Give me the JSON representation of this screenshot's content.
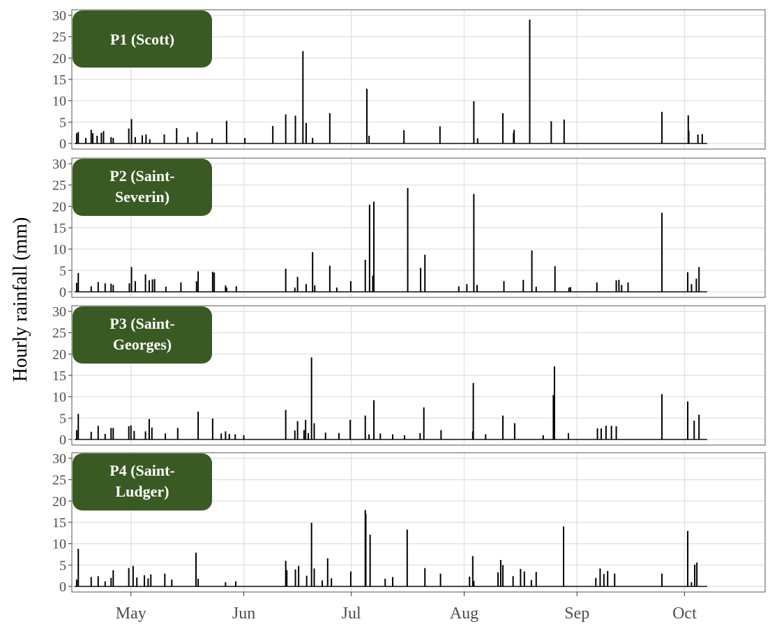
{
  "chart_data": {
    "type": "bar",
    "ylabel": "Hourly rainfall (mm)",
    "xlabel": "",
    "ylim": [
      0,
      30
    ],
    "yticks": [
      0,
      5,
      10,
      15,
      20,
      25,
      30
    ],
    "x_range_days": [
      75,
      204
    ],
    "xticks": [
      {
        "label": "May",
        "day": 86
      },
      {
        "label": "Jun",
        "day": 107
      },
      {
        "label": "Jul",
        "day": 127
      },
      {
        "label": "Aug",
        "day": 148
      },
      {
        "label": "Sep",
        "day": 169
      },
      {
        "label": "Oct",
        "day": 189
      }
    ],
    "grid": true,
    "strip_color": "#3a5a23",
    "series": [
      {
        "name": "P1 (Scott)",
        "name_lines": [
          "P1 (Scott)"
        ],
        "x": [
          75.9,
          76.2,
          77.6,
          78.6,
          78.9,
          79.7,
          80.5,
          80.9,
          82.3,
          82.7,
          85.6,
          86.1,
          86.8,
          88.1,
          88.8,
          89.5,
          92.2,
          94.5,
          96.6,
          98.3,
          101.1,
          103.8,
          107.2,
          112.4,
          114.8,
          116.6,
          118.0,
          118.6,
          119.8,
          123.0,
          129.9,
          130.3,
          136.8,
          143.5,
          149.8,
          150.5,
          155.2,
          157.2,
          157.3,
          160.2,
          164.2,
          166.6,
          184.8,
          189.7,
          189.8,
          191.5,
          192.3
        ],
        "values": [
          2.4,
          2.7,
          1.3,
          3.2,
          2.4,
          1.8,
          2.5,
          2.9,
          1.5,
          1.3,
          3.5,
          5.7,
          1.5,
          1.9,
          2.1,
          1.0,
          2.1,
          3.6,
          1.5,
          2.7,
          1.2,
          5.3,
          1.3,
          4.1,
          6.8,
          6.5,
          21.6,
          4.8,
          1.3,
          7.1,
          12.8,
          1.8,
          3.1,
          4.0,
          9.9,
          1.2,
          7.1,
          2.5,
          3.2,
          29.0,
          5.2,
          5.6,
          7.4,
          6.6,
          3.0,
          2.1,
          2.2
        ]
      },
      {
        "name": "P2 (Saint-Severin)",
        "name_lines": [
          "P2 (Saint-",
          "Severin)"
        ],
        "x": [
          75.9,
          76.2,
          78.6,
          79.9,
          81.2,
          82.3,
          82.7,
          85.7,
          86.1,
          86.8,
          88.7,
          89.4,
          90.0,
          90.4,
          92.5,
          95.3,
          98.2,
          98.5,
          101.2,
          101.5,
          103.6,
          103.8,
          105.6,
          114.8,
          116.5,
          117.0,
          118.6,
          119.8,
          120.2,
          123.0,
          124.3,
          126.9,
          129.6,
          130.4,
          131.0,
          131.2,
          137.5,
          139.9,
          140.7,
          147.0,
          148.5,
          149.8,
          150.4,
          155.4,
          159.0,
          160.6,
          161.4,
          164.9,
          167.5,
          167.8,
          172.7,
          176.3,
          176.8,
          177.3,
          178.5,
          184.8,
          189.6,
          190.3,
          191.2,
          191.7
        ],
        "values": [
          2.1,
          4.4,
          1.3,
          2.3,
          2.0,
          1.9,
          1.6,
          2.0,
          5.8,
          2.5,
          4.1,
          2.7,
          2.9,
          3.0,
          1.2,
          2.2,
          2.5,
          4.8,
          4.7,
          4.5,
          1.5,
          1.0,
          1.3,
          5.4,
          1.0,
          3.5,
          1.8,
          9.3,
          1.5,
          6.1,
          1.0,
          2.5,
          7.5,
          20.4,
          3.8,
          21.1,
          24.3,
          5.6,
          8.7,
          1.3,
          1.8,
          22.9,
          1.6,
          2.5,
          2.8,
          9.7,
          1.2,
          6.0,
          1.0,
          1.1,
          2.2,
          2.7,
          2.8,
          1.6,
          2.2,
          18.5,
          4.6,
          1.8,
          3.1,
          5.8
        ]
      },
      {
        "name": "P3 (Saint-Georges)",
        "name_lines": [
          "P3 (Saint-",
          "Georges)"
        ],
        "x": [
          75.9,
          76.2,
          78.6,
          79.9,
          81.2,
          82.3,
          82.7,
          85.6,
          86.0,
          86.6,
          88.7,
          89.4,
          89.9,
          92.4,
          94.7,
          98.5,
          101.2,
          102.8,
          103.6,
          104.3,
          105.4,
          107.0,
          114.8,
          116.5,
          117.0,
          118.2,
          118.5,
          119.0,
          119.6,
          120.1,
          122.2,
          124.7,
          126.8,
          129.6,
          130.3,
          131.2,
          132.4,
          134.7,
          136.9,
          139.8,
          140.5,
          143.7,
          149.6,
          149.7,
          152.0,
          155.2,
          157.4,
          162.7,
          164.6,
          164.8,
          167.4,
          172.8,
          173.5,
          174.4,
          175.4,
          176.3,
          184.8,
          189.6,
          190.8,
          191.7
        ],
        "values": [
          2.2,
          6.0,
          1.8,
          3.2,
          1.3,
          2.7,
          2.7,
          3.1,
          3.3,
          2.0,
          1.9,
          4.8,
          2.8,
          1.4,
          2.7,
          6.5,
          4.9,
          1.4,
          1.9,
          1.3,
          1.2,
          1.0,
          6.9,
          2.1,
          4.3,
          2.2,
          4.6,
          1.5,
          19.2,
          3.8,
          1.6,
          1.5,
          4.6,
          5.6,
          1.2,
          9.2,
          1.4,
          1.2,
          1.0,
          1.5,
          7.5,
          2.2,
          1.9,
          13.2,
          1.2,
          5.6,
          3.8,
          1.0,
          10.4,
          17.1,
          1.5,
          2.6,
          2.6,
          3.2,
          3.2,
          3.1,
          10.6,
          8.9,
          4.4,
          5.8
        ]
      },
      {
        "name": "P4 (Saint-Ludger)",
        "name_lines": [
          "P4 (Saint-",
          "Ludger)"
        ],
        "x": [
          75.9,
          76.2,
          78.6,
          79.9,
          81.2,
          82.3,
          82.7,
          85.6,
          86.4,
          87.1,
          88.5,
          89.2,
          89.7,
          92.3,
          93.6,
          98.1,
          98.5,
          103.6,
          105.5,
          114.8,
          115.0,
          116.6,
          117.2,
          118.7,
          119.6,
          120.1,
          121.6,
          122.6,
          123.3,
          126.9,
          129.6,
          129.7,
          130.5,
          133.3,
          134.7,
          137.4,
          140.7,
          143.6,
          149.0,
          149.6,
          149.8,
          154.3,
          154.8,
          155.2,
          157.1,
          158.5,
          159.2,
          160.5,
          161.4,
          166.5,
          172.5,
          173.3,
          174.0,
          174.7,
          176.0,
          184.8,
          189.6,
          190.3,
          190.9,
          191.3
        ],
        "values": [
          1.6,
          8.8,
          2.2,
          2.4,
          1.2,
          2.0,
          3.8,
          4.3,
          4.8,
          2.1,
          2.6,
          1.9,
          2.8,
          3.0,
          1.6,
          7.9,
          1.8,
          1.0,
          1.2,
          6.0,
          3.8,
          4.0,
          4.8,
          2.5,
          14.9,
          4.2,
          1.4,
          6.6,
          1.9,
          3.5,
          17.9,
          17.0,
          12.1,
          1.8,
          2.2,
          13.3,
          4.3,
          3.0,
          2.3,
          7.1,
          1.3,
          3.3,
          6.2,
          5.0,
          2.4,
          4.1,
          3.5,
          1.5,
          3.4,
          14.0,
          2.0,
          4.2,
          2.9,
          3.6,
          3.0,
          3.0,
          13.0,
          1.0,
          5.1,
          5.6
        ]
      }
    ]
  }
}
